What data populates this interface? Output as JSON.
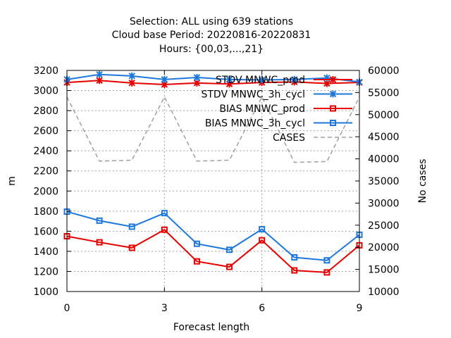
{
  "chart_data": {
    "type": "line",
    "title_lines": [
      "Selection: ALL using   639 stations",
      "Cloud base   Period: 20220816-20220831",
      "Hours: {00,03,...,21}"
    ],
    "xlabel": "Forecast length",
    "ylabel": "m",
    "y2label": "No cases",
    "x": [
      0,
      1,
      2,
      3,
      4,
      5,
      6,
      7,
      8,
      9
    ],
    "xlim": [
      0,
      9
    ],
    "xticks": [
      0,
      3,
      6,
      9
    ],
    "ylim": [
      1000,
      3200
    ],
    "yticks": [
      1000,
      1200,
      1400,
      1600,
      1800,
      2000,
      2200,
      2400,
      2600,
      2800,
      3000,
      3200
    ],
    "y2lim": [
      10000,
      60000
    ],
    "y2ticks": [
      10000,
      15000,
      20000,
      25000,
      30000,
      35000,
      40000,
      45000,
      50000,
      55000,
      60000
    ],
    "grid": true,
    "legend_position": "top-right",
    "series": [
      {
        "name": "STDV MNWC_prod",
        "axis": "y1",
        "color": "#e60000",
        "marker": "x",
        "dashed": false,
        "values": [
          3080,
          3100,
          3075,
          3060,
          3075,
          3065,
          3080,
          3085,
          3070,
          3080
        ]
      },
      {
        "name": "STDV MNWC_3h_cycl",
        "axis": "y1",
        "color": "#1e78dc",
        "marker": "x",
        "dashed": false,
        "values": [
          3110,
          3160,
          3145,
          3110,
          3130,
          3110,
          3105,
          3110,
          3125,
          3085
        ]
      },
      {
        "name": "BIAS MNWC_prod",
        "axis": "y1",
        "color": "#e60000",
        "marker": "square",
        "dashed": false,
        "values": [
          1550,
          1490,
          1435,
          1615,
          1300,
          1245,
          1510,
          1210,
          1190,
          1460
        ]
      },
      {
        "name": "BIAS MNWC_3h_cycl",
        "axis": "y1",
        "color": "#1e78dc",
        "marker": "square",
        "dashed": false,
        "values": [
          1795,
          1705,
          1645,
          1780,
          1475,
          1415,
          1620,
          1340,
          1310,
          1565
        ]
      },
      {
        "name": "CASES",
        "axis": "y2",
        "color": "#a0a0a0",
        "marker": "none",
        "dashed": true,
        "values": [
          54000,
          39500,
          39700,
          54000,
          39500,
          39700,
          54000,
          39200,
          39400,
          54000
        ]
      }
    ]
  }
}
